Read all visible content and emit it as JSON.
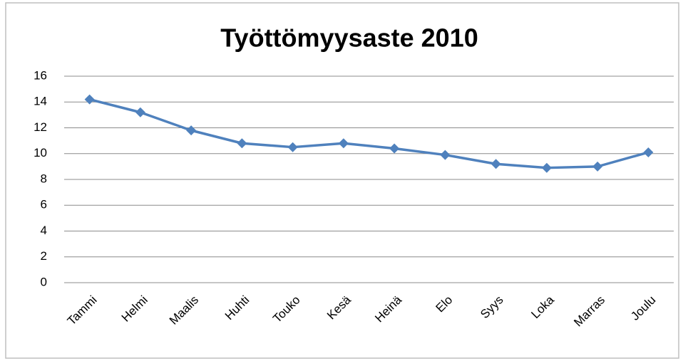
{
  "chart_data": {
    "type": "line",
    "title": "Työttömyysaste 2010",
    "categories": [
      "Tammi",
      "Helmi",
      "Maalis",
      "Huhti",
      "Touko",
      "Kesä",
      "Heinä",
      "Elo",
      "Syys",
      "Loka",
      "Marras",
      "Joulu"
    ],
    "series": [
      {
        "name": "Työttömyysaste",
        "color": "#4f81bd",
        "values": [
          14.2,
          13.2,
          11.8,
          10.8,
          10.5,
          10.8,
          10.4,
          9.9,
          9.2,
          8.9,
          9.0,
          10.1
        ]
      }
    ],
    "ylim": [
      0,
      16
    ],
    "yticks": [
      0,
      2,
      4,
      6,
      8,
      10,
      12,
      14,
      16
    ],
    "grid": true,
    "legend": false
  }
}
